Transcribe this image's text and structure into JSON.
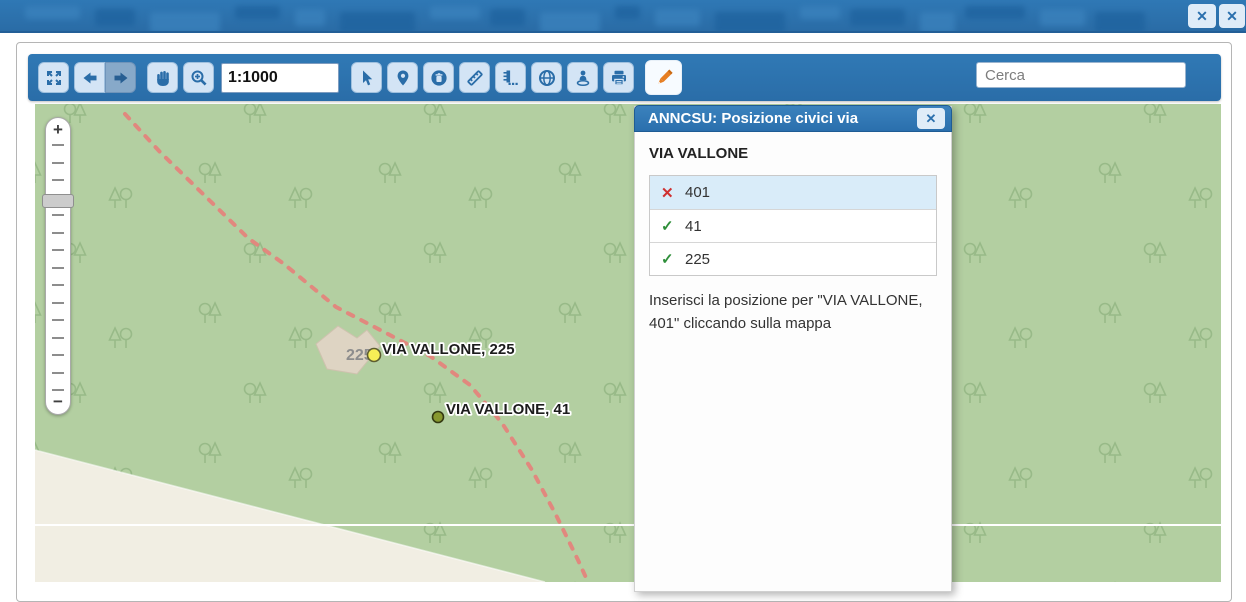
{
  "window": {
    "close_icon": "✕"
  },
  "toolbar": {
    "scale_value": "1:1000",
    "search_placeholder": "Cerca",
    "buttons": [
      "fullscreen",
      "back",
      "forward",
      "pan",
      "zoom-in",
      "select",
      "identify-pin",
      "delete",
      "measure-length",
      "measure-scale",
      "globe",
      "street-locate",
      "print",
      "edit-pencil"
    ],
    "active_tool": "edit-pencil",
    "disabled_tool": "forward"
  },
  "map_controls": {
    "zoom_in_label": "+",
    "zoom_out_label": "−"
  },
  "map": {
    "street_label_225": "VIA VALLONE, 225",
    "street_label_41": "VIA VALLONE, 41",
    "building_label": "225",
    "colors": {
      "ground": "#b3cfa1",
      "trees": "#98ba88",
      "path_dashed": "#e5807a",
      "bare_land": "#f1eee3",
      "building": "#ded4c3",
      "marker_225": "#f7ef56",
      "marker_41": "#87982f"
    }
  },
  "panel": {
    "title": "ANNCSU: Posizione civici via",
    "close_icon": "✕",
    "street": "VIA VALLONE",
    "items": [
      {
        "number": "401",
        "status": "missing",
        "icon": "✕",
        "selected": true
      },
      {
        "number": "41",
        "status": "placed",
        "icon": "✓",
        "selected": false
      },
      {
        "number": "225",
        "status": "placed",
        "icon": "✓",
        "selected": false
      }
    ],
    "instruction": "Inserisci la posizione per \"VIA VALLONE, 401\" cliccando sulla mappa"
  },
  "theme": {
    "accent_blue": "#2a6fad",
    "toolbar_button_bg": "#d3e4f5",
    "selected_row_bg": "#d9ecf9",
    "pencil_orange": "#e67e22"
  }
}
